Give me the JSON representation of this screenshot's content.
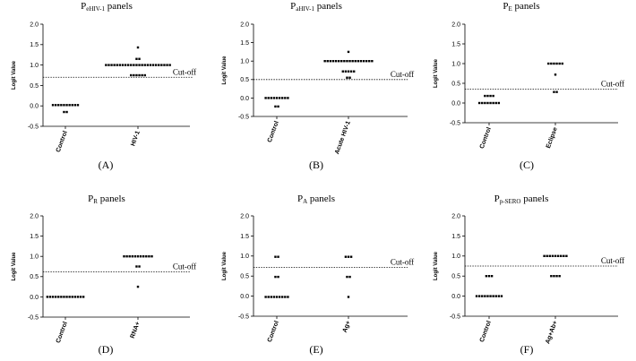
{
  "chart_data": [
    {
      "type": "scatter",
      "title_main": "P",
      "title_sub": "eHIV-1",
      "title_tail": " panels",
      "ylabel": "Logit Value",
      "ylim": [
        -0.5,
        2.0
      ],
      "yticks": [
        "2.0",
        "1.5",
        "1.0",
        "0.5",
        "0.0",
        "-0.5"
      ],
      "categories": [
        "Control",
        "HIV-1"
      ],
      "cutoff": 0.7,
      "cutoff_label": "Cut-off",
      "panel_label": "(A)",
      "points": [
        {
          "category": 0,
          "values": [
            0.02,
            0.02,
            0.02,
            0.02,
            0.02,
            0.02,
            0.02,
            0.02,
            0.02,
            0.02,
            -0.15,
            -0.15
          ]
        },
        {
          "category": 1,
          "values": [
            1.43,
            1.15,
            1.15,
            1.0,
            1.0,
            1.0,
            1.0,
            1.0,
            1.0,
            1.0,
            1.0,
            1.0,
            1.0,
            1.0,
            1.0,
            1.0,
            1.0,
            1.0,
            1.0,
            1.0,
            1.0,
            1.0,
            1.0,
            1.0,
            1.0,
            1.0,
            1.0,
            0.75,
            0.75,
            0.75,
            0.75,
            0.75,
            0.75
          ]
        }
      ]
    },
    {
      "type": "scatter",
      "title_main": "P",
      "title_sub": "aHIV-1",
      "title_tail": " panels",
      "ylabel": "Logit Value",
      "ylim": [
        -0.5,
        2.0
      ],
      "yticks": [
        "2.0",
        "1.5",
        "1.0",
        "0.5",
        "0.0",
        "-0.5"
      ],
      "categories": [
        "Control",
        "Acute HIV-1"
      ],
      "cutoff": 0.5,
      "cutoff_label": "Cut-off",
      "panel_label": "(B)",
      "points": [
        {
          "category": 0,
          "values": [
            0.0,
            0.0,
            0.0,
            0.0,
            0.0,
            0.0,
            0.0,
            0.0,
            0.0,
            -0.23,
            -0.23
          ]
        },
        {
          "category": 1,
          "values": [
            1.25,
            1.0,
            1.0,
            1.0,
            1.0,
            1.0,
            1.0,
            1.0,
            1.0,
            1.0,
            1.0,
            1.0,
            1.0,
            1.0,
            1.0,
            1.0,
            1.0,
            1.0,
            1.0,
            0.72,
            0.72,
            0.72,
            0.72,
            0.72,
            0.55,
            0.55
          ]
        }
      ]
    },
    {
      "type": "scatter",
      "title_main": "P",
      "title_sub": "E",
      "title_tail": " panels",
      "ylabel": "Logit Value",
      "ylim": [
        -0.5,
        2.0
      ],
      "yticks": [
        "2.0",
        "1.5",
        "1.0",
        "0.5",
        "0.0",
        "-0.5"
      ],
      "categories": [
        "Control",
        "Eclipse"
      ],
      "cutoff": 0.35,
      "cutoff_label": "Cut-off",
      "panel_label": "(C)",
      "points": [
        {
          "category": 0,
          "values": [
            0.18,
            0.18,
            0.18,
            0.18,
            0.0,
            0.0,
            0.0,
            0.0,
            0.0,
            0.0,
            0.0,
            0.0
          ]
        },
        {
          "category": 1,
          "values": [
            1.0,
            1.0,
            1.0,
            1.0,
            1.0,
            1.0,
            0.72,
            0.28,
            0.28
          ]
        }
      ]
    },
    {
      "type": "scatter",
      "title_main": "P",
      "title_sub": "R",
      "title_tail": " panels",
      "ylabel": "Logit Value",
      "ylim": [
        -0.5,
        2.0
      ],
      "yticks": [
        "2.0",
        "1.5",
        "1.0",
        "0.5",
        "0.0",
        "-0.5"
      ],
      "categories": [
        "Control",
        "RNA+"
      ],
      "cutoff": 0.62,
      "cutoff_label": "Cut-off",
      "panel_label": "(D)",
      "points": [
        {
          "category": 0,
          "values": [
            0.0,
            0.0,
            0.0,
            0.0,
            0.0,
            0.0,
            0.0,
            0.0,
            0.0,
            0.0,
            0.0,
            0.0,
            0.0,
            0.0
          ]
        },
        {
          "category": 1,
          "values": [
            1.0,
            1.0,
            1.0,
            1.0,
            1.0,
            1.0,
            1.0,
            1.0,
            1.0,
            1.0,
            1.0,
            0.75,
            0.75,
            0.25
          ]
        }
      ]
    },
    {
      "type": "scatter",
      "title_main": "P",
      "title_sub": "A",
      "title_tail": " panels",
      "ylabel": "Logit Value",
      "ylim": [
        -0.5,
        2.0
      ],
      "yticks": [
        "2.0",
        "1.5",
        "1.0",
        "0.5",
        "0.0",
        "-0.5"
      ],
      "categories": [
        "Control",
        "Ag+"
      ],
      "cutoff": 0.72,
      "cutoff_label": "Cut-off",
      "panel_label": "(E)",
      "points": [
        {
          "category": 0,
          "values": [
            0.98,
            0.98,
            0.48,
            0.48,
            -0.02,
            -0.02,
            -0.02,
            -0.02,
            -0.02,
            -0.02,
            -0.02,
            -0.02,
            -0.02
          ]
        },
        {
          "category": 1,
          "values": [
            0.98,
            0.98,
            0.98,
            0.48,
            0.48,
            -0.02
          ]
        }
      ]
    },
    {
      "type": "scatter",
      "title_main": "P",
      "title_sub": "p-SERO",
      "title_tail": " panels",
      "ylabel": "Logit Value",
      "ylim": [
        -0.5,
        2.0
      ],
      "yticks": [
        "2.0",
        "1.5",
        "1.0",
        "0.5",
        "0.0",
        "-0.5"
      ],
      "categories": [
        "Control",
        "Ag+Ab+"
      ],
      "cutoff": 0.75,
      "cutoff_label": "Cut-off",
      "panel_label": "(F)",
      "points": [
        {
          "category": 0,
          "values": [
            0.5,
            0.5,
            0.5,
            0.0,
            0.0,
            0.0,
            0.0,
            0.0,
            0.0,
            0.0,
            0.0,
            0.0,
            0.0
          ]
        },
        {
          "category": 1,
          "values": [
            1.0,
            1.0,
            1.0,
            1.0,
            1.0,
            1.0,
            1.0,
            1.0,
            1.0,
            0.5,
            0.5,
            0.5,
            0.5
          ]
        }
      ]
    }
  ]
}
